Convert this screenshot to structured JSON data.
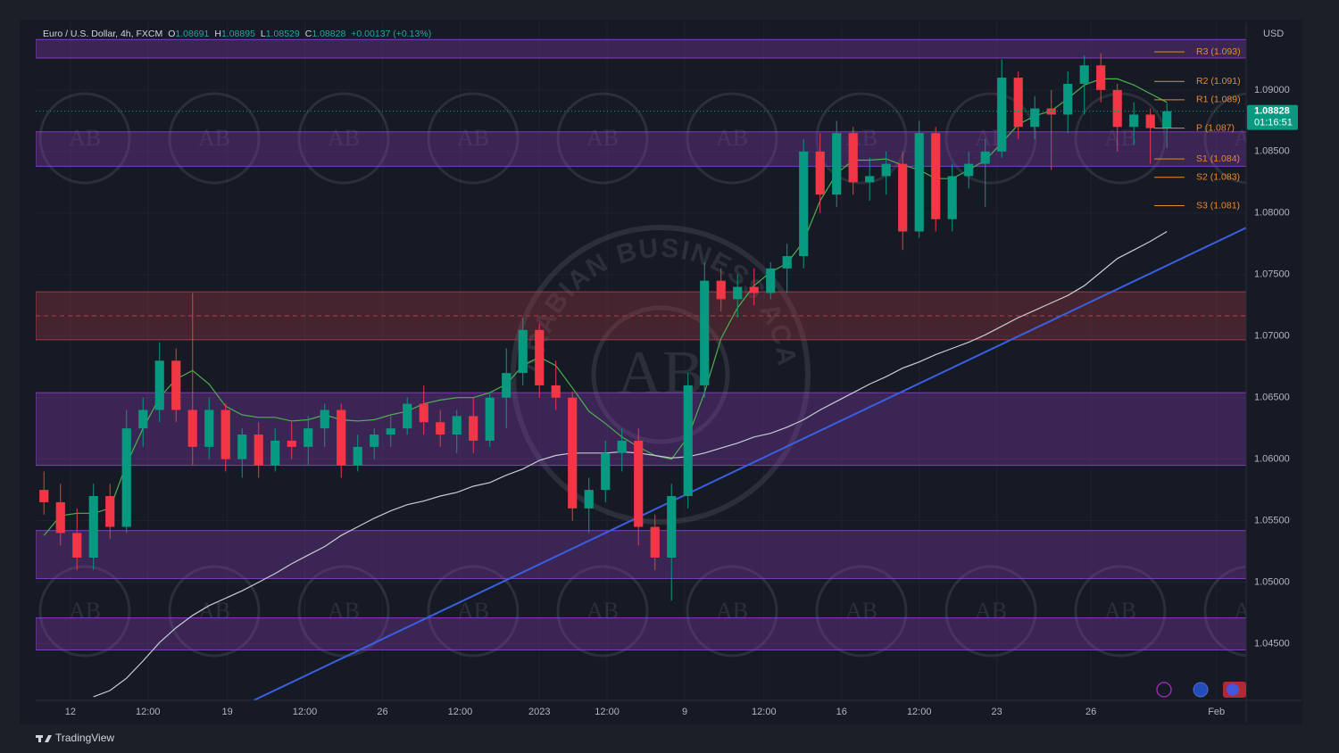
{
  "chart_data": {
    "type": "candlestick",
    "symbol": "Euro / U.S. Dollar, 4h, FXCM",
    "ohlc_labels": [
      "O",
      "H",
      "L",
      "C"
    ],
    "change_label": "+0.00137 (+0.13%)",
    "currency": "USD",
    "countdown": "01:16:51",
    "brand": "TradingView",
    "watermark": "ARABIAN BUSINESS ACADEMY",
    "watermark_logo": "AB",
    "up_color": "#089981",
    "down_color": "#f23645",
    "x": [
      0,
      1,
      2,
      3,
      4,
      5,
      6,
      7,
      8,
      9,
      10,
      11,
      12,
      13,
      14,
      15,
      16,
      17,
      18,
      19,
      20,
      21,
      22,
      23,
      24,
      25,
      26,
      27,
      28,
      29,
      30,
      31,
      32,
      33,
      34,
      35,
      36,
      37,
      38,
      39,
      40,
      41,
      42,
      43,
      44,
      45,
      46,
      47,
      48,
      49,
      50,
      51,
      52,
      53,
      54,
      55,
      56,
      57,
      58,
      59,
      60,
      61,
      62,
      63,
      64,
      65,
      66,
      67,
      68
    ],
    "open": [
      1.0575,
      1.0565,
      1.054,
      1.052,
      1.057,
      1.0545,
      1.0625,
      1.064,
      1.068,
      1.064,
      1.061,
      1.064,
      1.06,
      1.062,
      1.0595,
      1.0615,
      1.061,
      1.0625,
      1.064,
      1.0595,
      1.061,
      1.062,
      1.0625,
      1.0645,
      1.063,
      1.062,
      1.0635,
      1.0615,
      1.065,
      1.067,
      1.0705,
      1.066,
      1.065,
      1.056,
      1.0575,
      1.0605,
      1.0615,
      1.0545,
      1.052,
      1.057,
      1.066,
      1.0745,
      1.073,
      1.074,
      1.0735,
      1.0755,
      1.0765,
      1.085,
      1.0815,
      1.0865,
      1.0825,
      1.083,
      1.084,
      1.0785,
      1.0865,
      1.0795,
      1.083,
      1.084,
      1.085,
      1.091,
      1.087,
      1.0885,
      1.088,
      1.0905,
      1.092,
      1.09,
      1.087,
      1.088,
      1.08691
    ],
    "high": [
      1.059,
      1.058,
      1.056,
      1.058,
      1.058,
      1.064,
      1.065,
      1.0695,
      1.069,
      1.0735,
      1.065,
      1.0645,
      1.0625,
      1.063,
      1.0625,
      1.063,
      1.0635,
      1.0645,
      1.0645,
      1.062,
      1.0625,
      1.0635,
      1.065,
      1.066,
      1.064,
      1.064,
      1.065,
      1.0655,
      1.069,
      1.0715,
      1.071,
      1.068,
      1.0655,
      1.0585,
      1.0615,
      1.0625,
      1.0625,
      1.0555,
      1.058,
      1.067,
      1.076,
      1.0755,
      1.075,
      1.0755,
      1.076,
      1.0775,
      1.086,
      1.0865,
      1.0875,
      1.087,
      1.0845,
      1.085,
      1.085,
      1.0875,
      1.087,
      1.084,
      1.085,
      1.086,
      1.0925,
      1.0915,
      1.0895,
      1.09,
      1.0915,
      1.0928,
      1.093,
      1.0905,
      1.089,
      1.0885,
      1.08895
    ],
    "low": [
      1.0555,
      1.053,
      1.051,
      1.051,
      1.0535,
      1.054,
      1.061,
      1.063,
      1.063,
      1.0595,
      1.06,
      1.059,
      1.0585,
      1.0585,
      1.059,
      1.06,
      1.0595,
      1.061,
      1.0585,
      1.059,
      1.06,
      1.061,
      1.062,
      1.062,
      1.061,
      1.0605,
      1.0605,
      1.061,
      1.0625,
      1.066,
      1.065,
      1.064,
      1.055,
      1.054,
      1.0565,
      1.059,
      1.053,
      1.051,
      1.0485,
      1.056,
      1.065,
      1.072,
      1.0715,
      1.0725,
      1.073,
      1.0735,
      1.0755,
      1.08,
      1.0805,
      1.0815,
      1.081,
      1.0815,
      1.077,
      1.078,
      1.0785,
      1.0785,
      1.082,
      1.0805,
      1.0845,
      1.086,
      1.086,
      1.0835,
      1.0865,
      1.088,
      1.089,
      1.085,
      1.0855,
      1.084,
      1.08529
    ],
    "close": [
      1.0565,
      1.054,
      1.052,
      1.057,
      1.0545,
      1.0625,
      1.064,
      1.068,
      1.064,
      1.061,
      1.064,
      1.06,
      1.062,
      1.0595,
      1.0615,
      1.061,
      1.0625,
      1.064,
      1.0595,
      1.061,
      1.062,
      1.0625,
      1.0645,
      1.063,
      1.062,
      1.0635,
      1.0615,
      1.065,
      1.067,
      1.0705,
      1.066,
      1.065,
      1.056,
      1.0575,
      1.0605,
      1.0615,
      1.0545,
      1.052,
      1.057,
      1.066,
      1.0745,
      1.073,
      1.074,
      1.0735,
      1.0755,
      1.0765,
      1.085,
      1.0815,
      1.0865,
      1.0825,
      1.083,
      1.084,
      1.0785,
      1.0865,
      1.0795,
      1.083,
      1.084,
      1.085,
      1.091,
      1.087,
      1.0885,
      1.088,
      1.0905,
      1.092,
      1.09,
      1.087,
      1.088,
      1.0869,
      1.08828
    ],
    "lines": [
      {
        "color": "#4caf50",
        "values": [
          1.0538,
          1.0554,
          1.0556,
          1.0556,
          1.056,
          1.0596,
          1.0625,
          1.065,
          1.0665,
          1.0672,
          1.0661,
          1.0643,
          1.0636,
          1.0634,
          1.0634,
          1.0631,
          1.0632,
          1.0636,
          1.0632,
          1.0631,
          1.0632,
          1.0636,
          1.0639,
          1.0645,
          1.0648,
          1.065,
          1.065,
          1.0654,
          1.0661,
          1.0676,
          1.0683,
          1.0676,
          1.0658,
          1.0639,
          1.0629,
          1.0618,
          1.061,
          1.0603,
          1.06,
          1.0618,
          1.0654,
          1.0698,
          1.0723,
          1.0741,
          1.0752,
          1.0759,
          1.0777,
          1.081,
          1.0832,
          1.0843,
          1.0843,
          1.0844,
          1.0839,
          1.0835,
          1.0828,
          1.0828,
          1.0835,
          1.0843,
          1.0857,
          1.0872,
          1.0879,
          1.0883,
          1.0893,
          1.0904,
          1.0909,
          1.0909,
          1.0904,
          1.0897,
          1.089
        ]
      },
      {
        "color": "#c9ccd3",
        "values": [
          null,
          null,
          null,
          1.0407,
          1.0412,
          1.0422,
          1.0436,
          1.0451,
          1.0463,
          1.0473,
          1.0481,
          1.0487,
          1.0493,
          1.05,
          1.0507,
          1.0515,
          1.0522,
          1.0529,
          1.0538,
          1.0545,
          1.0552,
          1.0558,
          1.0563,
          1.0566,
          1.057,
          1.0573,
          1.0578,
          1.0581,
          1.0587,
          1.0592,
          1.0599,
          1.0603,
          1.0605,
          1.0605,
          1.0605,
          1.0606,
          1.0605,
          1.0603,
          1.0601,
          1.0602,
          1.0605,
          1.0609,
          1.0613,
          1.0618,
          1.0621,
          1.0626,
          1.0632,
          1.064,
          1.0647,
          1.0654,
          1.0661,
          1.0667,
          1.0674,
          1.0679,
          1.0685,
          1.069,
          1.0695,
          1.0701,
          1.0708,
          1.0715,
          1.0721,
          1.0727,
          1.0733,
          1.0741,
          1.0752,
          1.0763,
          1.077,
          1.0777,
          1.0785
        ]
      }
    ],
    "trendline": {
      "color": "#3a5fe0",
      "x": [
        12.7,
        72.8
      ],
      "values": [
        1.0404,
        1.0788
      ]
    },
    "zones": [
      {
        "from": 1.0926,
        "to": 1.0941,
        "color": "#8e3fc4"
      },
      {
        "from": 1.0838,
        "to": 1.0866,
        "color": "#8e3fc4"
      },
      {
        "from": 1.0697,
        "to": 1.0736,
        "color": "#b23a48",
        "midline": true
      },
      {
        "from": 1.0595,
        "to": 1.0654,
        "color": "#8e3fc4"
      },
      {
        "from": 1.0503,
        "to": 1.0542,
        "color": "#8e3fc4"
      },
      {
        "from": 1.0445,
        "to": 1.0471,
        "color": "#8e3fc4"
      }
    ],
    "pivots": [
      {
        "value": 1.0931,
        "label": "R3 (1.093)"
      },
      {
        "value": 1.0907,
        "label": "R2 (1.091)"
      },
      {
        "value": 1.0892,
        "label": "R1 (1.089)"
      },
      {
        "value": 1.0869,
        "label": "P (1.087)"
      },
      {
        "value": 1.0844,
        "label": "S1 (1.084)"
      },
      {
        "value": 1.0829,
        "label": "S2 (1.083)"
      },
      {
        "value": 1.0806,
        "label": "S3 (1.081)"
      }
    ],
    "pivot_color": "#e8892f",
    "xlim": [
      -0.5,
      72.8
    ],
    "ylim": [
      1.0404,
      1.0955
    ],
    "xticks": [
      {
        "value": 1.6,
        "label": "12"
      },
      {
        "value": 6.3,
        "label": "12:00"
      },
      {
        "value": 11.1,
        "label": "19"
      },
      {
        "value": 15.8,
        "label": "12:00"
      },
      {
        "value": 20.5,
        "label": "26"
      },
      {
        "value": 25.2,
        "label": "12:00"
      },
      {
        "value": 30.0,
        "label": "2023"
      },
      {
        "value": 34.1,
        "label": "12:00"
      },
      {
        "value": 38.8,
        "label": "9"
      },
      {
        "value": 43.6,
        "label": "12:00"
      },
      {
        "value": 48.3,
        "label": "16"
      },
      {
        "value": 53.0,
        "label": "12:00"
      },
      {
        "value": 57.7,
        "label": "23"
      },
      {
        "value": 63.4,
        "label": "26"
      },
      {
        "value": 71.0,
        "label": "Feb"
      }
    ],
    "yticks": [
      {
        "value": 1.09,
        "label": "1.09000"
      },
      {
        "value": 1.085,
        "label": "1.08500"
      },
      {
        "value": 1.08,
        "label": "1.08000"
      },
      {
        "value": 1.075,
        "label": "1.07500"
      },
      {
        "value": 1.07,
        "label": "1.07000"
      },
      {
        "value": 1.065,
        "label": "1.06500"
      },
      {
        "value": 1.06,
        "label": "1.06000"
      },
      {
        "value": 1.055,
        "label": "1.05500"
      },
      {
        "value": 1.05,
        "label": "1.05000"
      },
      {
        "value": 1.045,
        "label": "1.04500"
      }
    ],
    "grid": true
  }
}
